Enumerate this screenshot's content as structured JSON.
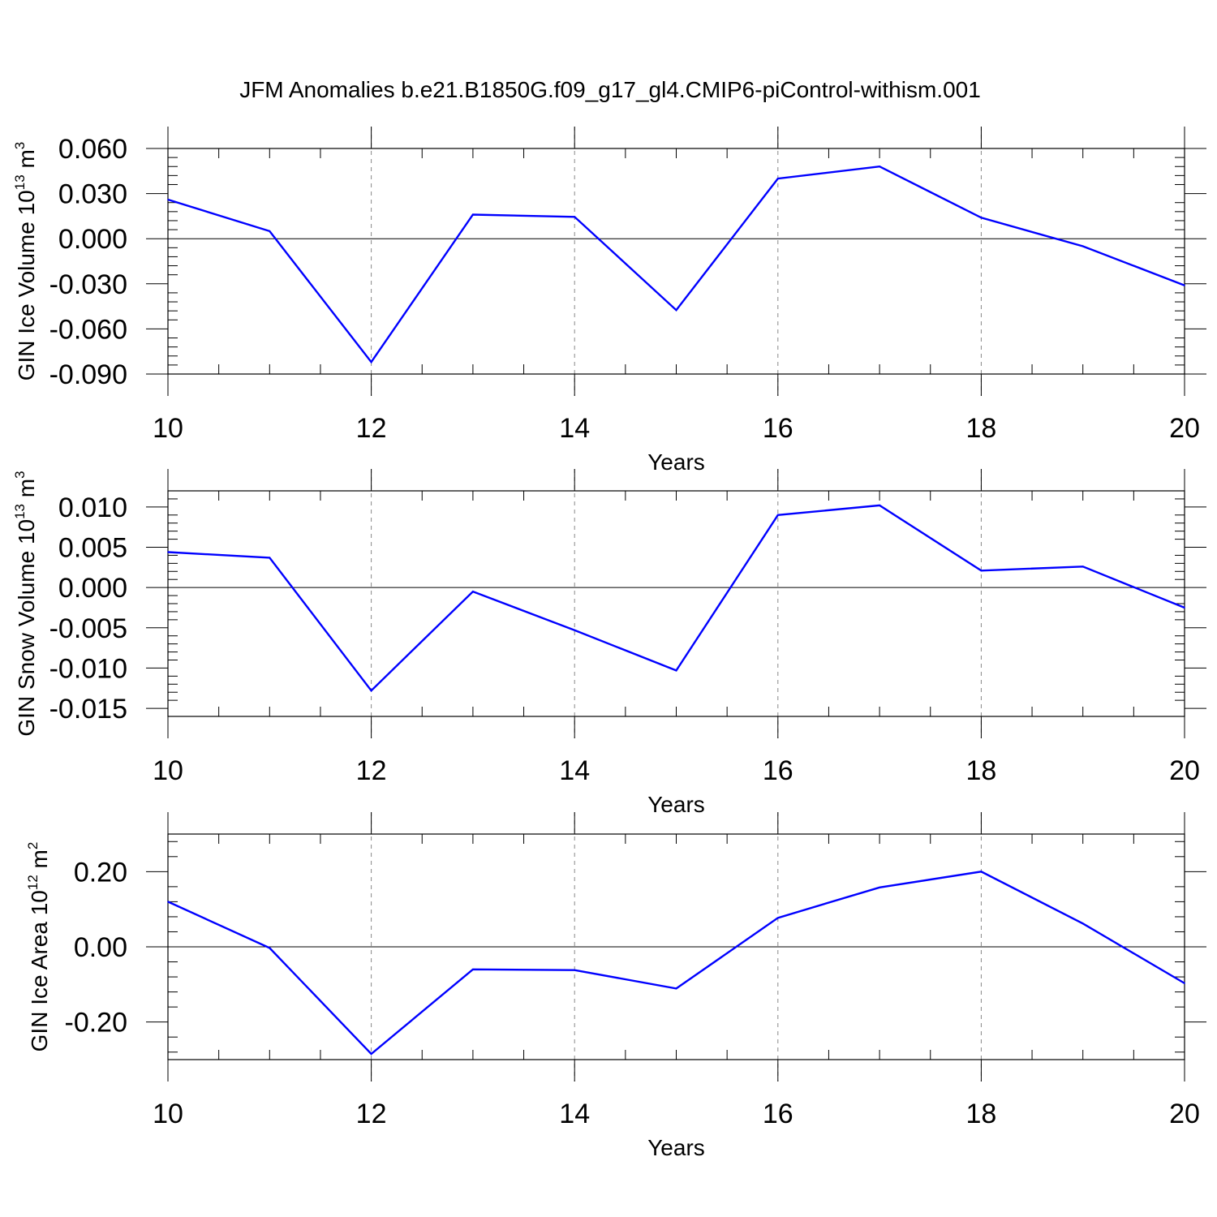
{
  "title": "JFM Anomalies b.e21.B1850G.f09_g17_gl4.CMIP6-piControl-withism.001",
  "chart_data": [
    {
      "type": "line",
      "xlabel": "Years",
      "ylabel": "GIN Ice Volume 10",
      "ylabel_exp": "13",
      "ylabel_unit": " m",
      "ylabel_unit_exp": "3",
      "xlim": [
        10,
        20
      ],
      "ylim": [
        -0.09,
        0.06
      ],
      "x_ticks": [
        10,
        12,
        14,
        16,
        18,
        20
      ],
      "y_ticks": [
        0.06,
        0.03,
        0.0,
        -0.03,
        -0.06,
        -0.09
      ],
      "y_tick_labels": [
        "0.060",
        "0.030",
        "0.000",
        "-0.030",
        "-0.060",
        "-0.090"
      ],
      "grid": "vertical dashed at major x ticks",
      "series": [
        {
          "color": "#0000ff",
          "x": [
            10,
            11,
            12,
            13,
            14,
            15,
            16,
            17,
            18,
            19,
            20
          ],
          "y": [
            0.026,
            0.005,
            -0.082,
            0.016,
            0.0145,
            -0.0475,
            0.04,
            0.048,
            0.014,
            -0.005,
            -0.031
          ]
        }
      ]
    },
    {
      "type": "line",
      "xlabel": "Years",
      "ylabel": "GIN Snow Volume 10",
      "ylabel_exp": "13",
      "ylabel_unit": " m",
      "ylabel_unit_exp": "3",
      "xlim": [
        10,
        20
      ],
      "ylim": [
        -0.016,
        0.012
      ],
      "x_ticks": [
        10,
        12,
        14,
        16,
        18,
        20
      ],
      "y_ticks": [
        0.01,
        0.005,
        0.0,
        -0.005,
        -0.01,
        -0.015
      ],
      "y_tick_labels": [
        "0.010",
        "0.005",
        "0.000",
        "-0.005",
        "-0.010",
        "-0.015"
      ],
      "grid": "vertical dashed at major x ticks",
      "series": [
        {
          "color": "#0000ff",
          "x": [
            10,
            11,
            12,
            13,
            14,
            15,
            16,
            17,
            18,
            19,
            20
          ],
          "y": [
            0.0044,
            0.0037,
            -0.0128,
            -0.0005,
            -0.0053,
            -0.0103,
            0.009,
            0.0102,
            0.0021,
            0.0026,
            -0.0025
          ]
        }
      ]
    },
    {
      "type": "line",
      "xlabel": "Years",
      "ylabel": "GIN Ice Area 10",
      "ylabel_exp": "12",
      "ylabel_unit": " m",
      "ylabel_unit_exp": "2",
      "xlim": [
        10,
        20
      ],
      "ylim": [
        -0.3,
        0.3
      ],
      "x_ticks": [
        10,
        12,
        14,
        16,
        18,
        20
      ],
      "y_ticks": [
        0.2,
        0.0,
        -0.2
      ],
      "y_tick_labels": [
        "0.20",
        "0.00",
        "-0.20"
      ],
      "grid": "vertical dashed at major x ticks",
      "series": [
        {
          "color": "#0000ff",
          "x": [
            10,
            11,
            12,
            13,
            14,
            15,
            16,
            17,
            18,
            19,
            20
          ],
          "y": [
            0.12,
            -0.003,
            -0.285,
            -0.06,
            -0.062,
            -0.111,
            0.077,
            0.158,
            0.2,
            0.062,
            -0.097
          ]
        }
      ]
    }
  ]
}
